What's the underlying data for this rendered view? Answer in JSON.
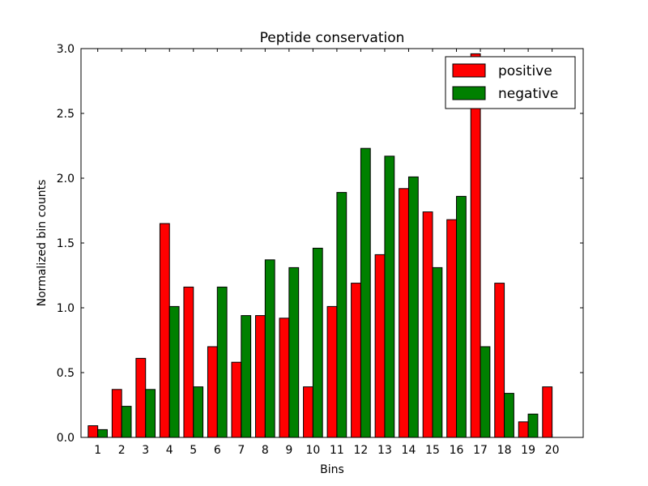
{
  "chart_data": {
    "type": "bar",
    "title": "Peptide conservation",
    "xlabel": "Bins",
    "ylabel": "Normalized bin counts",
    "categories": [
      "1",
      "2",
      "3",
      "4",
      "5",
      "6",
      "7",
      "8",
      "9",
      "10",
      "11",
      "12",
      "13",
      "14",
      "15",
      "16",
      "17",
      "18",
      "19",
      "20"
    ],
    "xlim": [
      0.3,
      21.3
    ],
    "ylim": [
      0,
      3.0
    ],
    "yticks": [
      "0.0",
      "0.5",
      "1.0",
      "1.5",
      "2.0",
      "2.5",
      "3.0"
    ],
    "grid": false,
    "legend_position": "top-right",
    "series": [
      {
        "name": "positive",
        "color": "#ff0000",
        "values": [
          0.09,
          0.37,
          0.61,
          1.65,
          1.16,
          0.7,
          0.58,
          0.94,
          0.92,
          0.39,
          1.01,
          1.19,
          1.41,
          1.92,
          1.74,
          1.68,
          2.96,
          1.19,
          0.12,
          0.39
        ]
      },
      {
        "name": "negative",
        "color": "#008000",
        "values": [
          0.06,
          0.24,
          0.37,
          1.01,
          0.39,
          1.16,
          0.94,
          1.37,
          1.31,
          1.46,
          1.89,
          2.23,
          2.17,
          2.01,
          1.31,
          1.86,
          0.7,
          0.34,
          0.18,
          0.0
        ]
      }
    ]
  }
}
